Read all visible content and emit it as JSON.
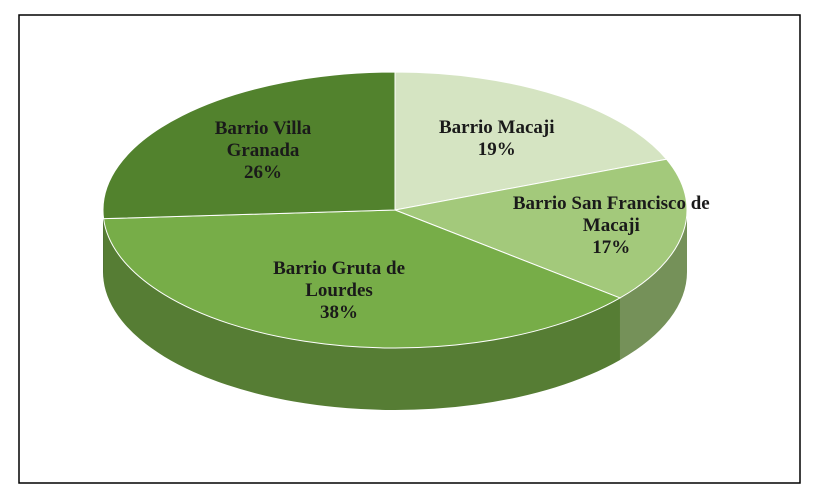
{
  "chart_data": {
    "type": "pie",
    "categories": [
      "Barrio Macaji",
      "Barrio San Francisco de Macaji",
      "Barrio Gruta de Lourdes",
      "Barrio Villa Granada"
    ],
    "values": [
      19,
      17,
      38,
      26
    ],
    "value_labels": [
      "19%",
      "17%",
      "38%",
      "26%"
    ],
    "colors": [
      "#d5e4c2",
      "#a3c97b",
      "#77ad48",
      "#52822d"
    ]
  }
}
